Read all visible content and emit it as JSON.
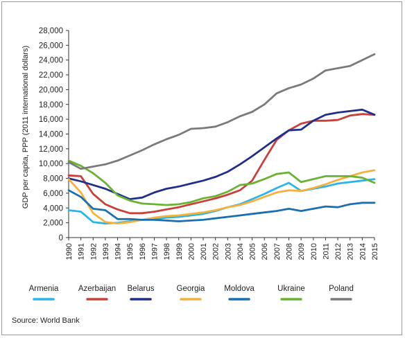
{
  "chart_data": {
    "type": "line",
    "ylabel": "GDP per capita, PPP (2011 international dollars)",
    "xlabel": "",
    "ylim": [
      0,
      28000
    ],
    "yticks": [
      0,
      2000,
      4000,
      6000,
      8000,
      10000,
      12000,
      14000,
      16000,
      18000,
      20000,
      22000,
      24000,
      26000,
      28000
    ],
    "ytick_labels": [
      "0",
      "2,000",
      "4,000",
      "6,000",
      "8,000",
      "10,000",
      "12,000",
      "14,000",
      "16,000",
      "18,000",
      "20,000",
      "22,000",
      "24,000",
      "26,000",
      "28,000"
    ],
    "x": [
      1990,
      1991,
      1992,
      1993,
      1994,
      1995,
      1996,
      1997,
      1998,
      1999,
      2000,
      2001,
      2002,
      2003,
      2004,
      2005,
      2006,
      2007,
      2008,
      2009,
      2010,
      2011,
      2012,
      2013,
      2014,
      2015
    ],
    "grid": false,
    "legend_position": "bottom",
    "series": [
      {
        "name": "Armenia",
        "color": "#29b5e8",
        "values": [
          3700,
          3500,
          2100,
          1900,
          2000,
          2200,
          2400,
          2500,
          2700,
          2800,
          3000,
          3200,
          3600,
          4100,
          4500,
          5200,
          5900,
          6700,
          7400,
          6300,
          6600,
          6900,
          7300,
          7500,
          7700,
          7900
        ]
      },
      {
        "name": "Azerbaijan",
        "color": "#c9403a",
        "values": [
          8400,
          8300,
          5900,
          4500,
          3800,
          3300,
          3300,
          3500,
          3800,
          4100,
          4500,
          4900,
          5300,
          5800,
          6400,
          7700,
          10500,
          13200,
          14500,
          15400,
          15800,
          15800,
          15900,
          16500,
          16700,
          16600
        ]
      },
      {
        "name": "Belarus",
        "color": "#1f2f8a",
        "values": [
          8000,
          7600,
          7100,
          6600,
          5900,
          5200,
          5400,
          6100,
          6600,
          6900,
          7300,
          7700,
          8200,
          8900,
          9900,
          11000,
          12200,
          13400,
          14500,
          14600,
          15800,
          16600,
          16900,
          17100,
          17300,
          16600
        ]
      },
      {
        "name": "Georgia",
        "color": "#f6b13a",
        "values": [
          7900,
          6100,
          3300,
          2100,
          1900,
          2100,
          2400,
          2700,
          2900,
          3000,
          3200,
          3400,
          3700,
          4100,
          4400,
          4900,
          5500,
          6100,
          6400,
          6300,
          6700,
          7200,
          7800,
          8300,
          8800,
          9100
        ]
      },
      {
        "name": "Moldova",
        "color": "#1a6fb0",
        "values": [
          6400,
          5500,
          3900,
          3700,
          2500,
          2500,
          2400,
          2400,
          2300,
          2200,
          2300,
          2400,
          2600,
          2800,
          3000,
          3200,
          3400,
          3600,
          3900,
          3600,
          3900,
          4200,
          4100,
          4500,
          4700,
          4700
        ]
      },
      {
        "name": "Ukraine",
        "color": "#6ab232",
        "values": [
          10400,
          9700,
          8700,
          7400,
          5700,
          5000,
          4600,
          4500,
          4400,
          4500,
          4800,
          5300,
          5600,
          6200,
          7100,
          7300,
          7900,
          8600,
          8800,
          7500,
          7900,
          8300,
          8300,
          8300,
          8100,
          7400
        ]
      },
      {
        "name": "Poland",
        "color": "#7a7a7a",
        "values": [
          10200,
          9300,
          9600,
          9900,
          10400,
          11100,
          11800,
          12600,
          13300,
          13900,
          14700,
          14800,
          15000,
          15600,
          16400,
          17000,
          18000,
          19500,
          20200,
          20700,
          21500,
          22600,
          22900,
          23200,
          24000,
          24800
        ]
      }
    ]
  },
  "source": "Source: World Bank"
}
